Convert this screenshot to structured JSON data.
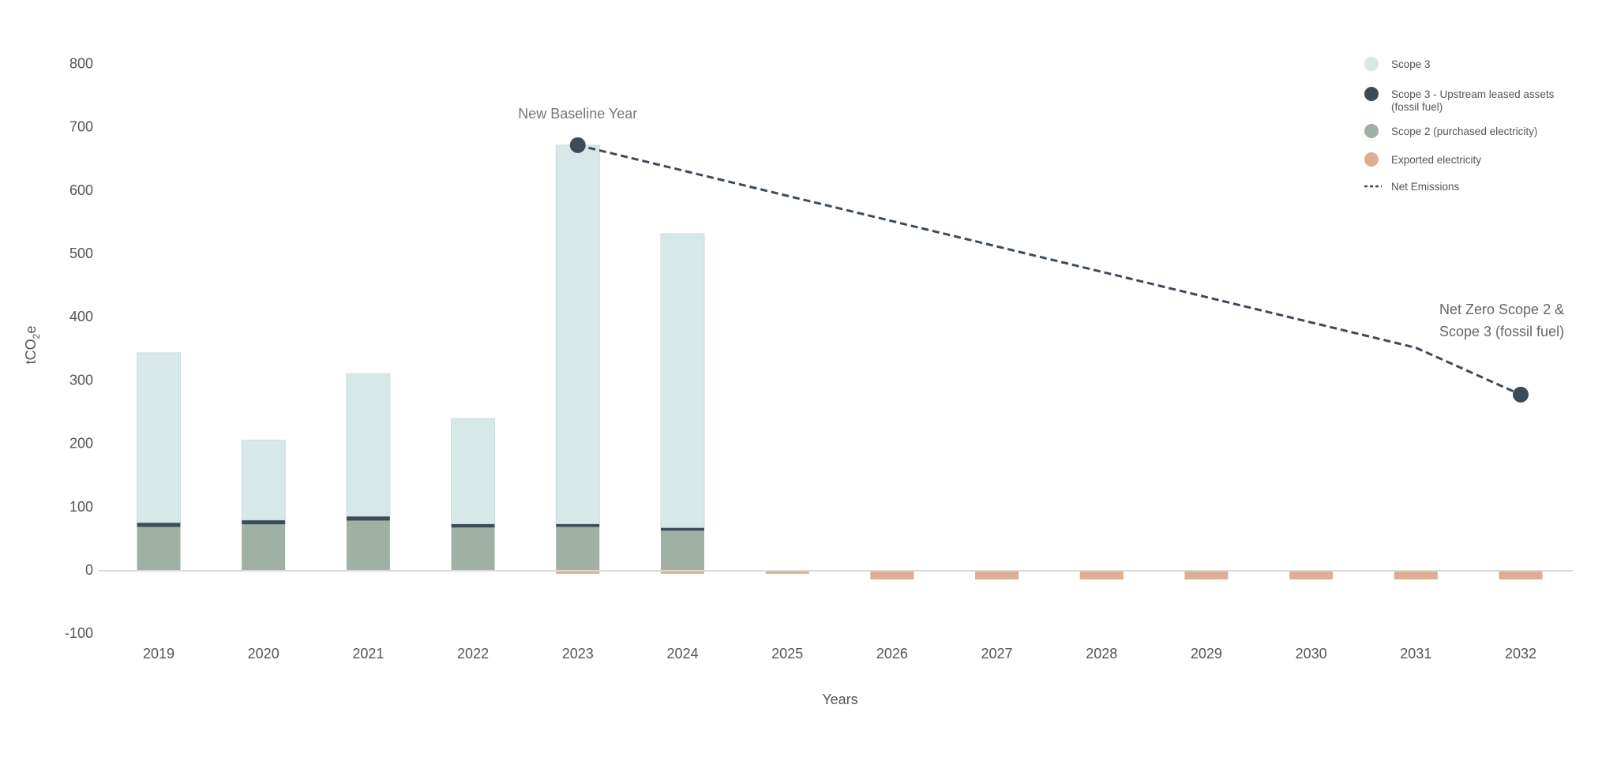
{
  "chart_data": {
    "type": "bar",
    "stacked": true,
    "xlabel": "Years",
    "ylabel": "tCO2e",
    "ylim": [
      -100,
      800
    ],
    "yticks": [
      -100,
      0,
      100,
      200,
      300,
      400,
      500,
      600,
      700,
      800
    ],
    "grid": false,
    "legend_placement": "top-right",
    "categories": [
      "2019",
      "2020",
      "2021",
      "2022",
      "2023",
      "2024",
      "2025",
      "2026",
      "2027",
      "2028",
      "2029",
      "2030",
      "2031",
      "2032"
    ],
    "series": [
      {
        "name": "Scope 2 (purchased electricity)",
        "color": "#a0b0a5",
        "values": [
          68,
          72,
          78,
          67,
          68,
          62,
          0,
          0,
          0,
          0,
          0,
          0,
          0,
          0
        ]
      },
      {
        "name": "Scope 3 - Upstream leased assets (fossil fuel)",
        "color": "#3d4b56",
        "values": [
          7,
          7,
          7,
          6,
          5,
          5,
          0,
          0,
          0,
          0,
          0,
          0,
          0,
          0
        ]
      },
      {
        "name": "Scope 3",
        "color": "#d8e7e7",
        "values": [
          268,
          126,
          225,
          166,
          598,
          464,
          0,
          0,
          0,
          0,
          0,
          0,
          0,
          0
        ]
      },
      {
        "name": "Exported electricity",
        "color": "#dcae93",
        "values": [
          0,
          0,
          0,
          0,
          -6,
          -6,
          -6,
          -15,
          -15,
          -15,
          -15,
          -15,
          -15,
          -15
        ]
      }
    ],
    "line": {
      "name": "Net Emissions",
      "style": "dashed",
      "color": "#3d4b56",
      "categories": [
        "2023",
        "2024",
        "2025",
        "2026",
        "2027",
        "2028",
        "2029",
        "2030",
        "2031",
        "2032"
      ],
      "values": [
        671,
        631,
        591,
        551,
        511,
        471,
        431,
        391,
        351,
        277
      ],
      "markers_at": [
        "2023",
        "2032"
      ]
    },
    "annotations": [
      {
        "text": "New Baseline Year",
        "at": "2023"
      },
      {
        "lines": [
          "Net Zero Scope 2 &",
          "Scope 3 (fossil fuel)"
        ],
        "at": "2032"
      }
    ],
    "legend": [
      {
        "label": "Scope 3",
        "symbol": "circle",
        "color": "#d8e7e7"
      },
      {
        "label_lines": [
          "Scope 3 - Upstream leased assets",
          "(fossil fuel)"
        ],
        "symbol": "circle",
        "color": "#3d4b56"
      },
      {
        "label": "Scope 2 (purchased electricity)",
        "symbol": "circle",
        "color": "#a0b0a5"
      },
      {
        "label": "Exported electricity",
        "symbol": "circle",
        "color": "#dcae93"
      },
      {
        "label": "Net Emissions",
        "symbol": "dashed-line",
        "color": "#3d4b56"
      }
    ]
  }
}
